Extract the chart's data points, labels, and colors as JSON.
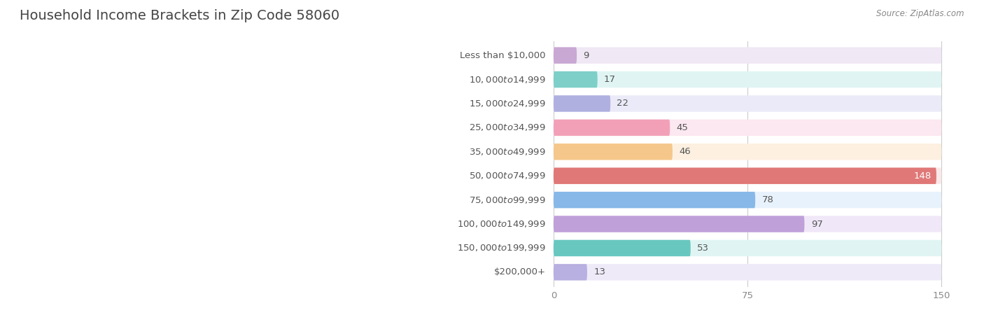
{
  "title": "Household Income Brackets in Zip Code 58060",
  "source": "Source: ZipAtlas.com",
  "categories": [
    "Less than $10,000",
    "$10,000 to $14,999",
    "$15,000 to $24,999",
    "$25,000 to $34,999",
    "$35,000 to $49,999",
    "$50,000 to $74,999",
    "$75,000 to $99,999",
    "$100,000 to $149,999",
    "$150,000 to $199,999",
    "$200,000+"
  ],
  "values": [
    9,
    17,
    22,
    45,
    46,
    148,
    78,
    97,
    53,
    13
  ],
  "bar_colors": [
    "#c9a8d4",
    "#7ecfc8",
    "#b0b0e0",
    "#f2a0b8",
    "#f5c78a",
    "#e07878",
    "#88b8e8",
    "#c0a0d8",
    "#68c8c0",
    "#b8b0e0"
  ],
  "bar_bg_colors": [
    "#f0e8f5",
    "#e0f5f3",
    "#eaeaf8",
    "#fce8f0",
    "#fdf0e0",
    "#fae8e8",
    "#e8f2fc",
    "#f0e8f8",
    "#e0f5f3",
    "#eeeaf8"
  ],
  "xlim": [
    0,
    150
  ],
  "xticks": [
    0,
    75,
    150
  ],
  "background_color": "#ffffff",
  "title_fontsize": 14,
  "label_fontsize": 9.5,
  "value_fontsize": 9.5,
  "title_color": "#444444",
  "label_color": "#555555",
  "value_color_dark": "#555555",
  "value_color_light": "#ffffff",
  "source_color": "#888888"
}
